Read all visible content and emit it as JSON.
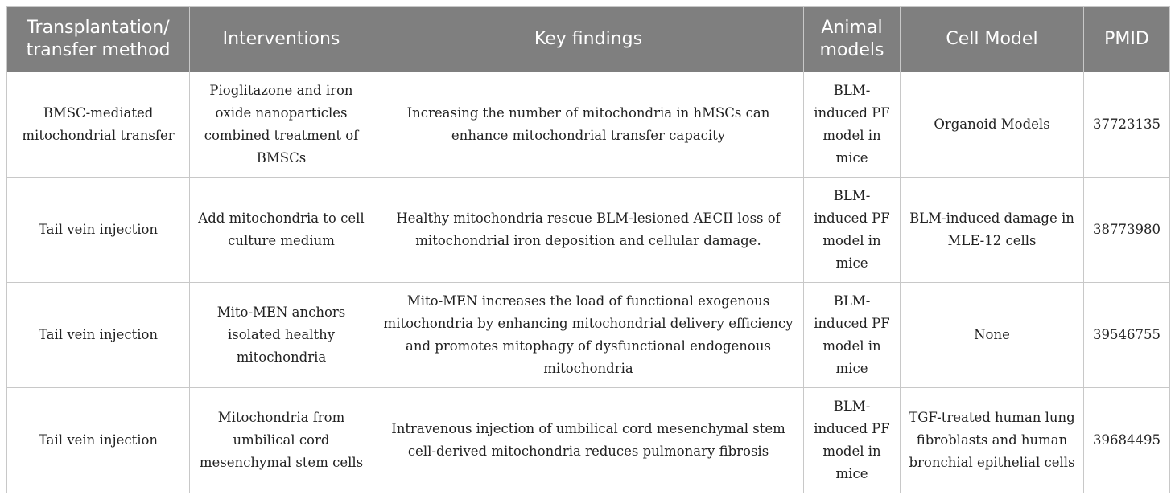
{
  "table": {
    "header": [
      "Transplantation/ transfer method",
      "Interventions",
      "Key findings",
      "Animal models",
      "Cell Model",
      "PMID"
    ],
    "rows": [
      [
        "BMSC-mediated mitochondrial transfer",
        "Pioglitazone and iron oxide nanoparticles combined treatment of BMSCs",
        "Increasing the number of mitochondria in hMSCs can enhance mitochondrial transfer capacity",
        "BLM-induced PF model in mice",
        "Organoid Models",
        37723135
      ],
      [
        "Tail vein injection",
        "Add mitochondria to cell culture medium",
        "Healthy mitochondria rescue BLM-lesioned AECII loss of mitochondrial iron deposition and cellular damage.",
        "BLM-induced PF model in mice",
        "BLM-induced damage in MLE-12 cells",
        38773980
      ],
      [
        "Tail vein injection",
        "Mito-MEN anchors isolated healthy mitochondria",
        "Mito-MEN increases the load of functional exogenous mitochondria by enhancing mitochondrial delivery efficiency and promotes mitophagy of dysfunctional endogenous mitochondria",
        "BLM-induced PF model in mice",
        "None",
        39546755
      ],
      [
        "Tail vein injection",
        "Mitochondria from umbilical cord mesenchymal stem cells",
        "Intravenous injection of umbilical cord mesenchymal stem cell-derived mitochondria reduces pulmonary fibrosis",
        "BLM-induced PF model in mice",
        "TGF-treated human lung fibroblasts and human bronchial epithelial cells",
        39684495
      ]
    ]
  }
}
